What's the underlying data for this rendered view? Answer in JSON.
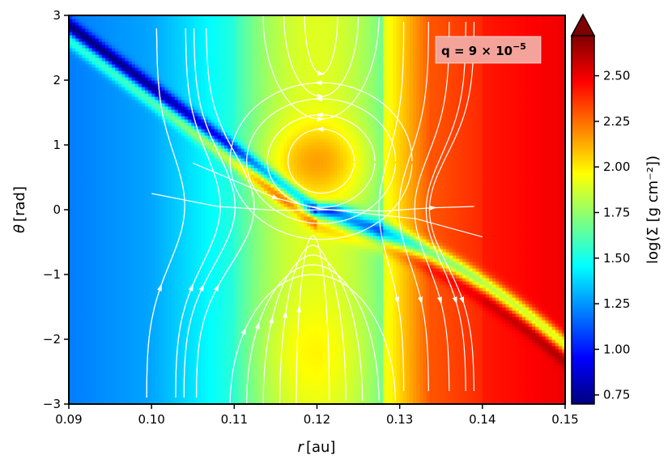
{
  "chart_data": {
    "type": "heatmap",
    "title": "",
    "xlabel_symbol": "r",
    "xlabel_unit": "[au]",
    "ylabel_symbol": "θ",
    "ylabel_unit": "[rad]",
    "xlim": [
      0.09,
      0.15
    ],
    "ylim": [
      -3,
      3
    ],
    "x_ticks": [
      0.09,
      0.1,
      0.11,
      0.12,
      0.13,
      0.14,
      0.15
    ],
    "x_tick_labels": [
      "0.09",
      "0.10",
      "0.11",
      "0.12",
      "0.13",
      "0.14",
      "0.15"
    ],
    "y_ticks": [
      3,
      2,
      1,
      0,
      -1,
      -2,
      -3
    ],
    "y_tick_labels": [
      "3",
      "2",
      "1",
      "0",
      "−1",
      "−2",
      "−3"
    ],
    "annotation": {
      "lhs": "q = 9 × 10",
      "exponent": "−5",
      "bg_color": "#f4a39a"
    },
    "colorbar": {
      "label": "log(Σ [g cm⁻²])",
      "range": [
        0.7,
        2.72
      ],
      "extend": "max",
      "ticks": [
        2.5,
        2.25,
        2.0,
        1.75,
        1.5,
        1.25,
        1.0,
        0.75
      ],
      "tick_labels": [
        "2.50",
        "2.25",
        "2.00",
        "1.75",
        "1.50",
        "1.25",
        "1.00",
        "0.75"
      ],
      "colormap": "jet",
      "colormap_colors": [
        "#00007f",
        "#0000ff",
        "#007fff",
        "#00ffff",
        "#7fff7f",
        "#ffff00",
        "#ff7f00",
        "#ff0000",
        "#7f0000"
      ]
    },
    "field": {
      "description_values": {
        "background_inner_r_0.09": 1.25,
        "gap_center_r_0.12": 1.95,
        "outer_disk_r_0.15": 2.5,
        "spiral_wake_min": 0.8,
        "horseshoe_vortex_peak_theta_0.75": 2.05
      }
    },
    "streamlines": {
      "color": "#ffffff",
      "pattern": "horseshoe orbits around planet at r=0.12 au, theta=0"
    }
  }
}
